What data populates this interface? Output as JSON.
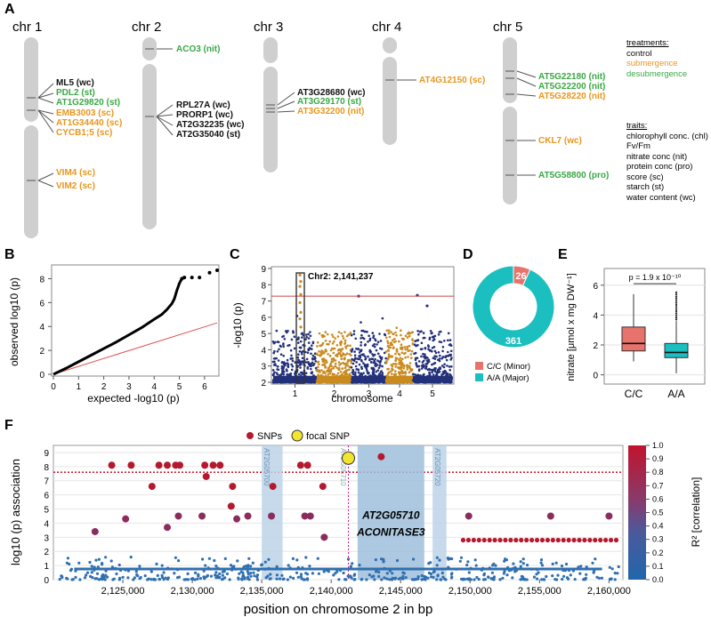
{
  "panels": {
    "a": "A",
    "b": "B",
    "c": "C",
    "d": "D",
    "e": "E",
    "f": "F"
  },
  "panelA": {
    "chromosomes": [
      "chr 1",
      "chr 2",
      "chr 3",
      "chr 4",
      "chr 5"
    ],
    "genes": {
      "chr1": [
        {
          "name": "ML5 (wc)",
          "cls": "control"
        },
        {
          "name": "PDL2 (st)",
          "cls": "desub"
        },
        {
          "name": "AT1G29820 (st)",
          "cls": "desub"
        },
        {
          "name": "EMB3003 (sc)",
          "cls": "sub"
        },
        {
          "name": "AT1G34440 (sc)",
          "cls": "sub"
        },
        {
          "name": "CYCB1;5 (sc)",
          "cls": "sub"
        },
        {
          "name": "VIM4 (sc)",
          "cls": "sub"
        },
        {
          "name": "VIM2 (sc)",
          "cls": "sub"
        }
      ],
      "chr2": [
        {
          "name": "ACO3 (nit)",
          "cls": "desub"
        },
        {
          "name": "RPL27A (wc)",
          "cls": "control"
        },
        {
          "name": "PRORP1 (wc)",
          "cls": "control"
        },
        {
          "name": "AT2G32235 (wc)",
          "cls": "control"
        },
        {
          "name": "AT2G35040 (st)",
          "cls": "control"
        }
      ],
      "chr3": [
        {
          "name": "AT3G28680 (wc)",
          "cls": "control"
        },
        {
          "name": "AT3G29170 (st)",
          "cls": "desub"
        },
        {
          "name": "AT3G32200 (nit)",
          "cls": "sub"
        }
      ],
      "chr4": [
        {
          "name": "AT4G12150 (sc)",
          "cls": "sub"
        }
      ],
      "chr5": [
        {
          "name": "AT5G22180 (nit)",
          "cls": "desub"
        },
        {
          "name": "AT5G22200 (nit)",
          "cls": "desub"
        },
        {
          "name": "AT5G28220 (nit)",
          "cls": "sub"
        },
        {
          "name": "CKL7 (wc)",
          "cls": "sub"
        },
        {
          "name": "AT5G58800 (pro)",
          "cls": "desub"
        }
      ]
    },
    "treatments": {
      "title": "treatments:",
      "items": [
        {
          "label": "control",
          "cls": "control"
        },
        {
          "label": "submergence",
          "cls": "sub"
        },
        {
          "label": "desubmergence",
          "cls": "desub"
        }
      ]
    },
    "traits": {
      "title": "traits:",
      "items": [
        "chlorophyll conc. (chl)",
        "Fv/Fm",
        "nitrate conc (nit)",
        "protein conc (pro)",
        "score (sc)",
        "starch (st)",
        "water content (wc)"
      ]
    }
  },
  "chart_data": [
    {
      "type": "scatter",
      "id": "qqplot",
      "xlabel": "expected -log10 (p)",
      "ylabel": "observed log10 (p)",
      "xlim": [
        0,
        6.5
      ],
      "ylim": [
        0,
        9
      ],
      "xticks": [
        "0",
        "1",
        "2",
        "3",
        "4",
        "5",
        "6"
      ],
      "yticks": [
        "0",
        "2",
        "4",
        "6",
        "8"
      ],
      "series": [
        {
          "name": "observed",
          "x": [
            0,
            0.5,
            1,
            1.5,
            2,
            2.5,
            3,
            3.5,
            4,
            4.3,
            4.5,
            4.7,
            4.8,
            4.9,
            5.0,
            5.1,
            5.2,
            5.5,
            5.8,
            6.2,
            6.5
          ],
          "y": [
            0,
            0.5,
            1.05,
            1.6,
            2.15,
            2.7,
            3.3,
            3.9,
            4.6,
            5.0,
            5.4,
            5.9,
            6.3,
            7.0,
            7.6,
            8.0,
            8.1,
            8.1,
            8.1,
            8.5,
            8.7
          ]
        }
      ]
    },
    {
      "type": "scatter",
      "id": "manhattan",
      "ylabel": "-log10 (p)",
      "xlabel": "chromosome",
      "xticks": [
        "1",
        "2",
        "3",
        "4",
        "5"
      ],
      "yticks": [
        "2",
        "3",
        "4",
        "5",
        "6",
        "7",
        "8",
        "9"
      ],
      "ylim": [
        2,
        9
      ],
      "threshold": 7.3,
      "annotation": "Chr2: 2,141,237"
    },
    {
      "type": "pie",
      "id": "genotype",
      "slices": [
        {
          "label": "C/C (Minor)",
          "value": 26,
          "color": "#e8736c"
        },
        {
          "label": "A/A (Major)",
          "value": 361,
          "color": "#1cbfbf"
        }
      ]
    },
    {
      "type": "box",
      "id": "nitrate",
      "ylabel": "nitrate [μmol x mg DW⁻¹]",
      "categories": [
        "C/C",
        "A/A"
      ],
      "ylim": [
        -0.5,
        7
      ],
      "yticks": [
        "0",
        "2",
        "4",
        "6"
      ],
      "annotation": "p = 1.9 x 10⁻¹⁰",
      "boxes": [
        {
          "name": "C/C",
          "min": 0.9,
          "q1": 1.6,
          "median": 2.1,
          "q3": 3.2,
          "max": 5.4,
          "color": "#e8736c"
        },
        {
          "name": "A/A",
          "min": 0.1,
          "q1": 1.15,
          "median": 1.5,
          "q3": 2.1,
          "max": 3.6,
          "color": "#1cbfbf"
        }
      ]
    },
    {
      "type": "scatter",
      "id": "locuszoom",
      "xlabel": "position on chromosome 2 in bp",
      "ylabel": "log10 (p) association",
      "ylim": [
        0,
        9.5
      ],
      "xlim": [
        2120000,
        2161000
      ],
      "xticks": [
        "2,125,000",
        "2,130,000",
        "2,135,000",
        "2,140,000",
        "2,145,000",
        "2,150,000",
        "2,155,000",
        "2,160,000"
      ],
      "yticks": [
        "0",
        "1",
        "2",
        "3",
        "4",
        "5",
        "6",
        "7",
        "8",
        "9"
      ],
      "threshold": 7.6,
      "focal": {
        "x": 2141237,
        "y": 8.6
      },
      "colorbar": {
        "label": "R² [correlation]",
        "ticks": [
          "0.0",
          "0.1",
          "0.2",
          "0.3",
          "0.4",
          "0.5",
          "0.6",
          "0.7",
          "0.8",
          "0.9",
          "1.0"
        ]
      },
      "legend": {
        "snps": "SNPs",
        "focal": "focal SNP"
      },
      "genes": [
        "AT2G05700",
        "AT2G05710",
        "AT2G05720"
      ],
      "geneLabel": [
        "AT2G05710",
        "ACONITASE3"
      ]
    }
  ]
}
